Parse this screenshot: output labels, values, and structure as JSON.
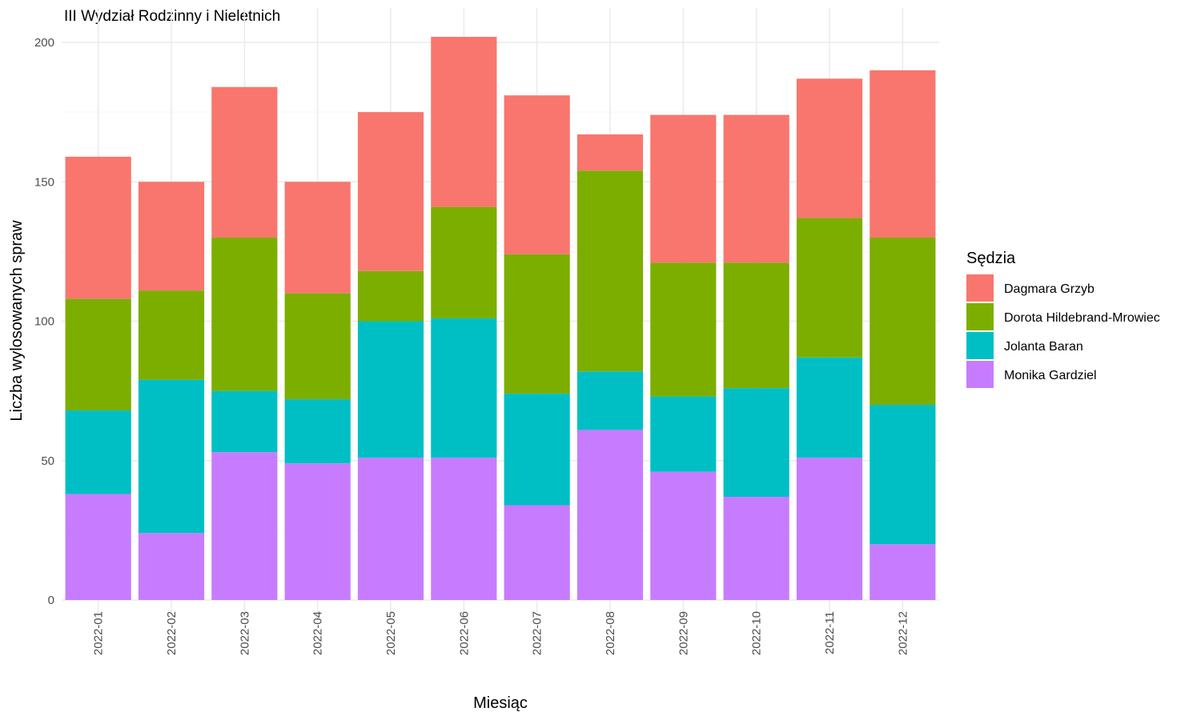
{
  "chart_data": {
    "type": "bar",
    "stacked": true,
    "title": "III Wydział Rodzinny i Nieletnich",
    "xlabel": "Miesiąc",
    "ylabel": "Liczba wylosowanych spraw",
    "ylim": [
      0,
      210
    ],
    "yticks": [
      0,
      50,
      100,
      150,
      200
    ],
    "grid": true,
    "legend": {
      "title": "Sędzia",
      "position": "right"
    },
    "categories": [
      "2022-01",
      "2022-02",
      "2022-03",
      "2022-04",
      "2022-05",
      "2022-06",
      "2022-07",
      "2022-08",
      "2022-09",
      "2022-10",
      "2022-11",
      "2022-12"
    ],
    "series": [
      {
        "name": "Monika Gardziel",
        "color": "#C77CFF",
        "values": [
          38,
          24,
          53,
          49,
          51,
          51,
          34,
          61,
          46,
          37,
          51,
          20
        ]
      },
      {
        "name": "Jolanta Baran",
        "color": "#00BFC4",
        "values": [
          30,
          55,
          22,
          23,
          49,
          50,
          40,
          21,
          27,
          39,
          36,
          50
        ]
      },
      {
        "name": "Dorota Hildebrand-Mrowiec",
        "color": "#7CAE00",
        "values": [
          40,
          32,
          55,
          38,
          18,
          40,
          50,
          72,
          48,
          45,
          50,
          60
        ]
      },
      {
        "name": "Dagmara Grzyb",
        "color": "#F8766D",
        "values": [
          51,
          39,
          54,
          40,
          57,
          61,
          57,
          13,
          53,
          53,
          50,
          60
        ]
      }
    ],
    "legend_order": [
      "Dagmara Grzyb",
      "Dorota Hildebrand-Mrowiec",
      "Jolanta Baran",
      "Monika Gardziel"
    ]
  }
}
